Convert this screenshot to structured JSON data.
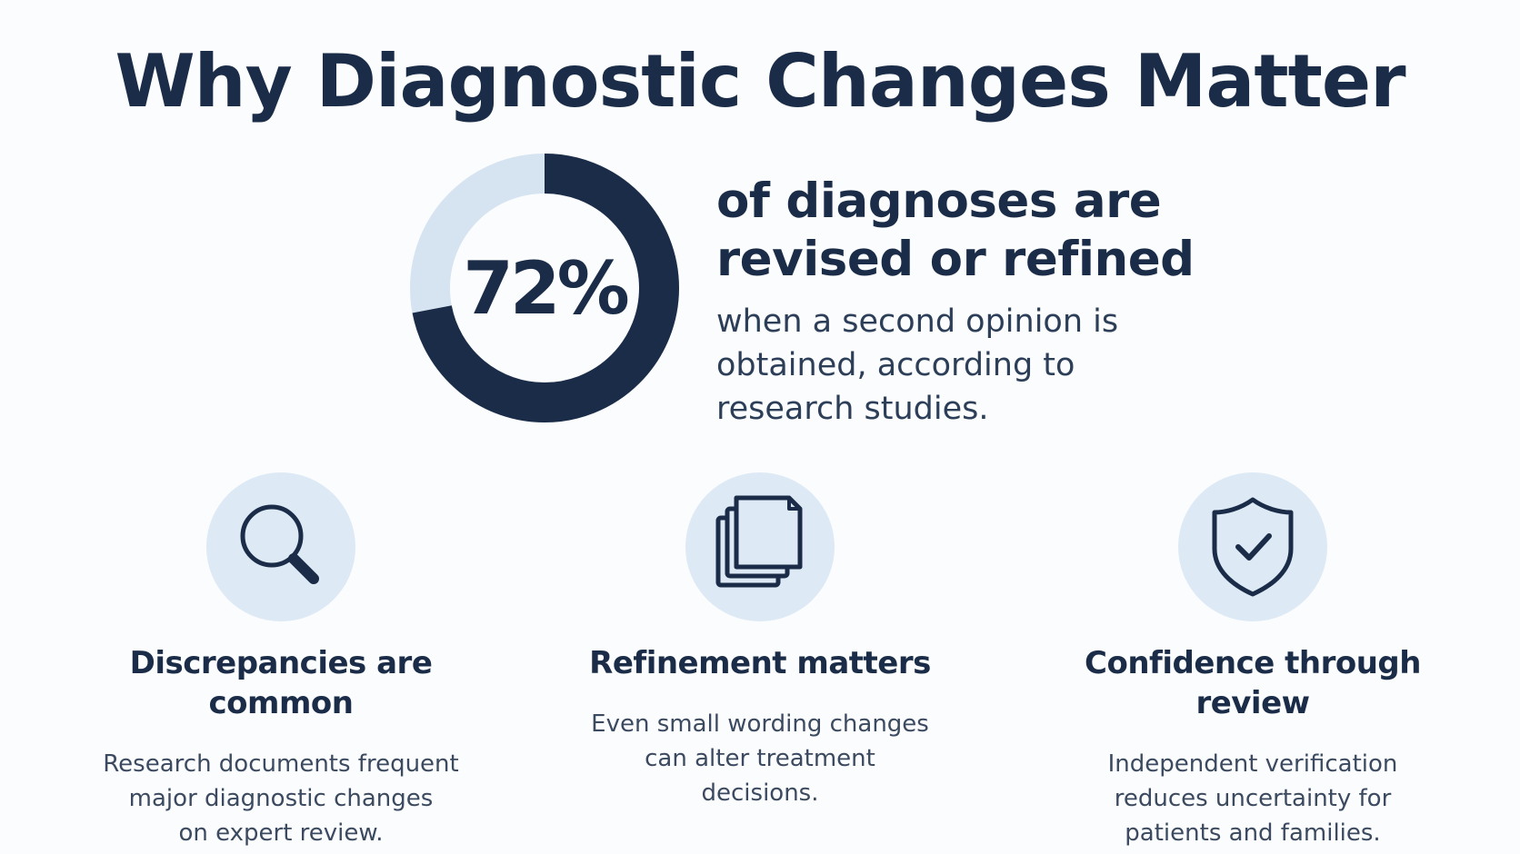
{
  "title": "Why Diagnostic Changes Matter",
  "stat": {
    "percent_label": "72%",
    "fraction": 0.72,
    "headline_line1": "of diagnoses are",
    "headline_line2": "revised or refined",
    "sub_line1": "when a second opinion is",
    "sub_line2": "obtained, according to",
    "sub_line3": "research studies.",
    "filled_color": "#1a2c48",
    "remaining_color": "#d6e3f1"
  },
  "features": [
    {
      "icon": "magnifying-glass-icon",
      "title": "Discrepancies are common",
      "body_line1": "Research documents frequent",
      "body_line2": "major diagnostic changes",
      "body_line3": "on expert review."
    },
    {
      "icon": "stacked-documents-icon",
      "title": "Refinement matters",
      "body_line1": "Even small wording changes",
      "body_line2": "can alter treatment",
      "body_line3": "decisions."
    },
    {
      "icon": "shield-check-icon",
      "title": "Confidence through review",
      "body_line1": "Independent verification",
      "body_line2": "reduces uncertainty for",
      "body_line3": "patients and families."
    }
  ],
  "colors": {
    "primary": "#1a2c48",
    "icon_bg": "#dde9f5",
    "background": "#fbfcfd"
  }
}
